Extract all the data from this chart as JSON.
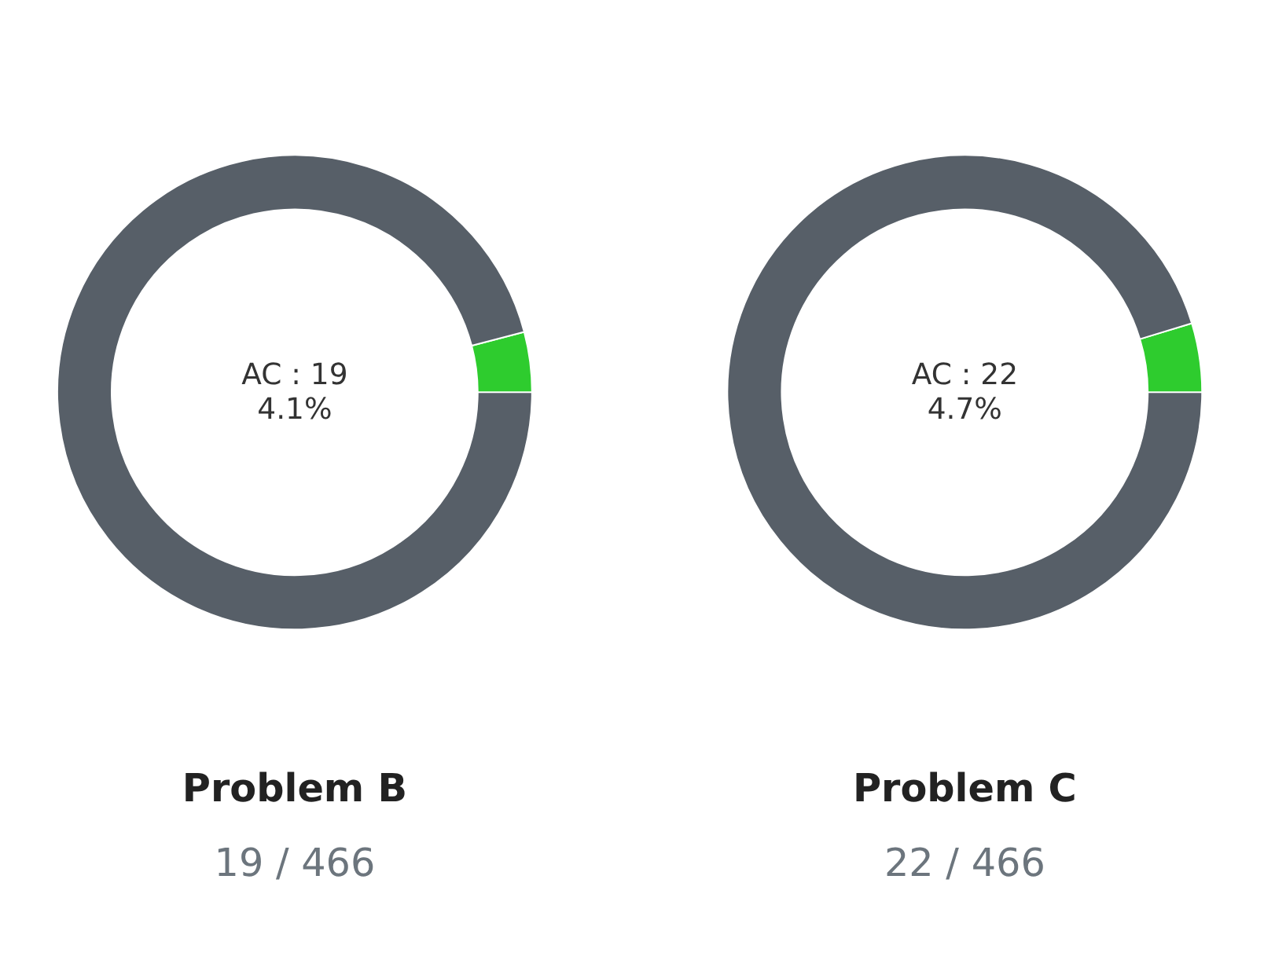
{
  "chart_data": [
    {
      "type": "donut",
      "title": "Problem B",
      "subtitle": "19 / 466",
      "categories": [
        null,
        null
      ],
      "values": [
        4.1,
        95.9
      ],
      "colors": [
        "#2ecc2e",
        "#575f68"
      ],
      "annotations": [
        "AC : 19",
        "4.1%"
      ]
    },
    {
      "type": "donut",
      "title": "Problem C",
      "subtitle": "22 / 466",
      "categories": [
        null,
        null
      ],
      "values": [
        4.7,
        95.3
      ],
      "colors": [
        "#2ecc2e",
        "#575f68"
      ],
      "annotations": [
        "AC : 22",
        "4.7%"
      ]
    }
  ]
}
